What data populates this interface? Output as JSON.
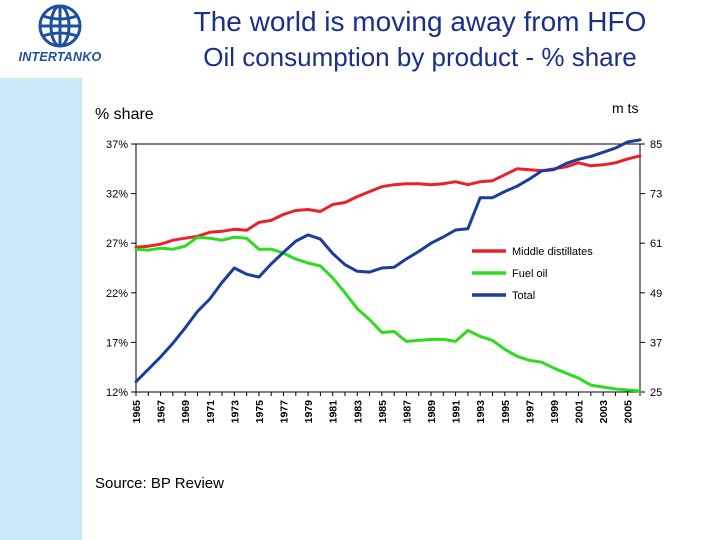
{
  "header": {
    "logo_text": "INTERTANKO",
    "title": "The world is moving away from HFO",
    "subtitle": "Oil consumption by product - % share"
  },
  "labels": {
    "left_axis": "% share",
    "right_axis": "m ts",
    "source": "Source: BP Review"
  },
  "colors": {
    "background": "#c9e9f7",
    "title": "#1a2f8a",
    "logo": "#1f4fa0"
  },
  "chart_data": {
    "type": "line",
    "title": "",
    "xlabel": "",
    "ylabel": "% share",
    "y2label": "m ts",
    "x": [
      1965,
      1966,
      1967,
      1968,
      1969,
      1970,
      1971,
      1972,
      1973,
      1974,
      1975,
      1976,
      1977,
      1978,
      1979,
      1980,
      1981,
      1982,
      1983,
      1984,
      1985,
      1986,
      1987,
      1988,
      1989,
      1990,
      1991,
      1992,
      1993,
      1994,
      1995,
      1996,
      1997,
      1998,
      1999,
      2000,
      2001,
      2002,
      2003,
      2004,
      2005,
      2006
    ],
    "x_tick_labels": [
      "1965",
      "1967",
      "1969",
      "1971",
      "1973",
      "1975",
      "1977",
      "1979",
      "1981",
      "1983",
      "1985",
      "1987",
      "1989",
      "1991",
      "1993",
      "1995",
      "1997",
      "1999",
      "2001",
      "2003",
      "2005"
    ],
    "ylim": [
      12,
      37
    ],
    "y_ticks": [
      "12%",
      "17%",
      "22%",
      "27%",
      "32%",
      "37%"
    ],
    "y2lim": [
      25,
      85
    ],
    "y2_ticks": [
      "25",
      "37",
      "49",
      "61",
      "73",
      "85"
    ],
    "grid": false,
    "legend_position": "right-middle",
    "series": [
      {
        "name": "Middle distillates",
        "axis": "left",
        "color": "#e8212a",
        "values": [
          26.6,
          26.7,
          26.9,
          27.3,
          27.5,
          27.7,
          28.1,
          28.2,
          28.4,
          28.3,
          29.1,
          29.3,
          29.9,
          30.3,
          30.4,
          30.2,
          30.9,
          31.1,
          31.7,
          32.2,
          32.7,
          32.9,
          33.0,
          33.0,
          32.9,
          33.0,
          33.2,
          32.9,
          33.2,
          33.3,
          33.9,
          34.5,
          34.4,
          34.3,
          34.5,
          34.7,
          35.1,
          34.8,
          34.9,
          35.1,
          35.5,
          35.8
        ]
      },
      {
        "name": "Fuel oil",
        "axis": "left",
        "color": "#2ddc1e",
        "values": [
          26.4,
          26.3,
          26.5,
          26.4,
          26.7,
          27.6,
          27.5,
          27.3,
          27.6,
          27.5,
          26.4,
          26.4,
          26.0,
          25.4,
          25.0,
          24.7,
          23.5,
          22.0,
          20.4,
          19.3,
          18.0,
          18.1,
          17.1,
          17.2,
          17.3,
          17.3,
          17.1,
          18.2,
          17.6,
          17.2,
          16.3,
          15.6,
          15.2,
          15.0,
          14.4,
          13.9,
          13.4,
          12.7,
          12.5,
          12.3,
          12.2,
          12.1
        ]
      },
      {
        "name": "Total",
        "axis": "right",
        "color": "#1c3c9e",
        "values": [
          27.5,
          30.5,
          33.5,
          36.8,
          40.5,
          44.5,
          47.5,
          51.5,
          55.0,
          53.5,
          52.8,
          56.0,
          58.8,
          61.5,
          63.0,
          62.0,
          58.5,
          55.8,
          54.2,
          54.0,
          55.0,
          55.2,
          57.2,
          59.0,
          61.0,
          62.5,
          64.2,
          64.5,
          72.0,
          72.0,
          73.5,
          74.8,
          76.5,
          78.5,
          78.8,
          80.3,
          81.3,
          82.0,
          83.0,
          84.0,
          85.5,
          86.0
        ]
      }
    ]
  }
}
